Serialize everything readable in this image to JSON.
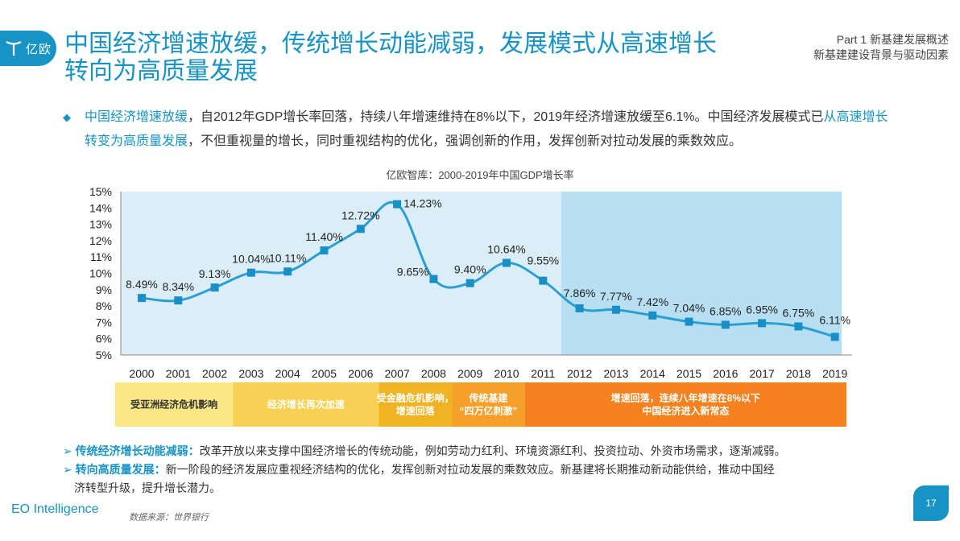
{
  "brand": {
    "logo_text": "亿欧",
    "footer": "EO Intelligence"
  },
  "header": {
    "title_line1": "中国经济增速放缓，传统增长动能减弱，发展模式从高速增长",
    "title_line2": "转向为高质量发展",
    "part": "Part 1 新基建发展概述",
    "subtitle": "新基建建设背景与驱动因素"
  },
  "intro": {
    "hl1": "中国经济增速放缓",
    "t1": "，自2012年GDP增长率回落，持续八年增速维持在8%以下，2019年经济增速放缓至6.1%。中国经济发展模式已",
    "hl2": "从高速增长转变为高质量发展",
    "t2": "，不但重视量的增长，同时重视结构的优化，强调创新的作用，发挥创新对拉动发展的乘数效应。"
  },
  "chart_data": {
    "type": "line",
    "title": "亿欧智库：2000-2019年中国GDP增长率",
    "xlabel": "",
    "ylabel": "",
    "categories": [
      "2000",
      "2001",
      "2002",
      "2003",
      "2004",
      "2005",
      "2006",
      "2007",
      "2008",
      "2009",
      "2010",
      "2011",
      "2012",
      "2013",
      "2014",
      "2015",
      "2016",
      "2017",
      "2018",
      "2019"
    ],
    "series": [
      {
        "values": [
          8.49,
          8.34,
          9.13,
          10.04,
          10.11,
          11.4,
          12.72,
          14.23,
          9.65,
          9.4,
          10.64,
          9.55,
          7.86,
          7.77,
          7.42,
          7.04,
          6.85,
          6.95,
          6.75,
          6.11
        ]
      }
    ],
    "data_labels": [
      "8.49%",
      "8.34%",
      "9.13%",
      "10.04%",
      "10.11%",
      "11.40%",
      "12.72%",
      "14.23%",
      "9.65%",
      "9.40%",
      "10.64%",
      "9.55%",
      "7.86%",
      "7.77%",
      "7.42%",
      "7.04%",
      "6.85%",
      "6.95%",
      "6.75%",
      "6.11%"
    ],
    "y_ticks": [
      "5%",
      "6%",
      "7%",
      "8%",
      "9%",
      "10%",
      "11%",
      "12%",
      "13%",
      "14%",
      "15%"
    ],
    "ylim": [
      5,
      15
    ],
    "grid": false,
    "line_color": "#2b9fd2",
    "marker_color": "#1a8ec6",
    "shade_periods": [
      {
        "from": "2000",
        "to": "2011",
        "color": "#dbeef7"
      },
      {
        "from": "2012",
        "to": "2019",
        "color": "#b7dff1"
      }
    ],
    "periods": [
      {
        "from": "2000",
        "to": "2002",
        "label": "受亚洲经济危机影响",
        "color": "#f9e784",
        "text_color": "#333333"
      },
      {
        "from": "2003",
        "to": "2006",
        "label": "经济增长再次加速",
        "color": "#f8d154",
        "text_color": "#ffffff"
      },
      {
        "from": "2007",
        "to": "2008",
        "label": "受金融危机影响，|增速回落",
        "color": "#f0b323",
        "text_color": "#ffffff"
      },
      {
        "from": "2009",
        "to": "2010",
        "label": "传统基建|“四万亿刺激”",
        "color": "#f7a029",
        "text_color": "#ffffff"
      },
      {
        "from": "2011",
        "to": "2019",
        "label": "增速回落，连续八年增速在8%以下|中国经济进入新常态",
        "color": "#f5821f",
        "text_color": "#ffffff"
      }
    ]
  },
  "notes": {
    "k1": "传统经济增长动能减弱：",
    "t1": "改革开放以来支撑中国经济增长的传统动能，例如劳动力红利、环境资源红利、投资拉动、外资市场需求，逐渐减弱。",
    "k2": "转向高质量发展：",
    "t2": "新一阶段的经济发展应重视经济结构的优化，发挥创新对拉动发展的乘数效应。新基建将长期推动新动能供给，推动中国经",
    "t3": "济转型升级，提升增长潜力。"
  },
  "source": "数据来源：世界银行",
  "page_number": "17",
  "colors": {
    "accent": "#1793c6"
  }
}
